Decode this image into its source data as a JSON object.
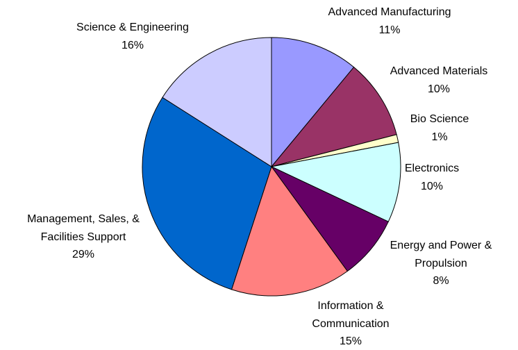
{
  "chart_data": {
    "type": "pie",
    "categories": [
      "Advanced Manufacturing",
      "Advanced Materials",
      "Bio Science",
      "Electronics",
      "Energy and Power & Propulsion",
      "Information & Communication",
      "Management, Sales, & Facilities Support",
      "Science & Engineering"
    ],
    "values": [
      11,
      10,
      1,
      10,
      8,
      15,
      29,
      16
    ],
    "value_labels": [
      "11%",
      "10%",
      "1%",
      "10%",
      "8%",
      "15%",
      "29%",
      "16%"
    ],
    "colors": [
      "#9999ff",
      "#993366",
      "#ffffcc",
      "#ccffff",
      "#660066",
      "#ff8080",
      "#0066cc",
      "#ccccff"
    ]
  }
}
